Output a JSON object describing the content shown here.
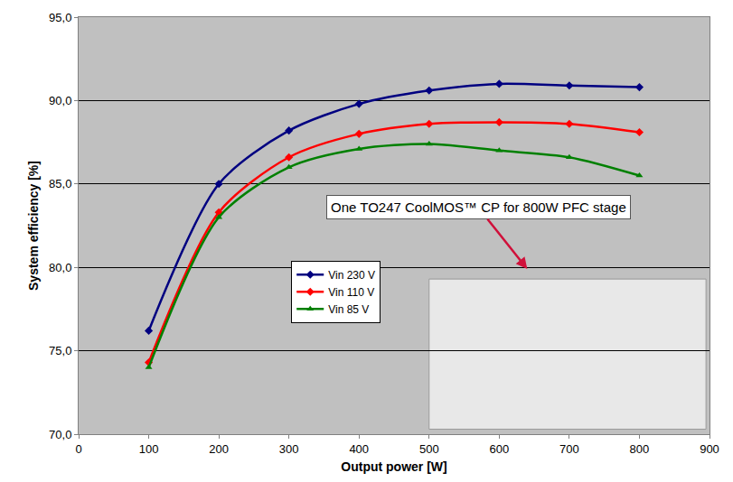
{
  "chart_data": {
    "type": "line",
    "x_label": "Output power [W]",
    "y_label": "System efficiency [%]",
    "x": [
      100,
      200,
      300,
      400,
      500,
      600,
      700,
      800
    ],
    "series": [
      {
        "name": "Vin 230 V",
        "color": "#000080",
        "marker": "diamond",
        "line_style": "solid",
        "values": [
          76.2,
          85.0,
          88.2,
          89.8,
          90.6,
          91.0,
          90.9,
          90.8
        ]
      },
      {
        "name": "Vin 110 V",
        "color": "#ff0000",
        "marker": "diamond",
        "line_style": "solid",
        "values": [
          74.3,
          83.3,
          86.6,
          88.0,
          88.6,
          88.7,
          88.6,
          88.1
        ]
      },
      {
        "name": "Vin 85 V",
        "color": "#008000",
        "marker": "triangle-up",
        "line_style": "solid",
        "values": [
          74.0,
          83.0,
          86.0,
          87.1,
          87.4,
          87.0,
          86.6,
          85.5
        ]
      }
    ],
    "xlim": [
      0,
      900
    ],
    "xticks": [
      0,
      100,
      200,
      300,
      400,
      500,
      600,
      700,
      800,
      900
    ],
    "ylim": [
      70,
      95
    ],
    "yticks": [
      {
        "value": 70,
        "label": "70,0"
      },
      {
        "value": 75,
        "label": "75,0"
      },
      {
        "value": 80,
        "label": "80,0"
      },
      {
        "value": 85,
        "label": "85,0"
      },
      {
        "value": 90,
        "label": "90,0"
      },
      {
        "value": 95,
        "label": "95,0"
      }
    ],
    "grid": true,
    "legend": "center",
    "annotations": [
      "One TO247 CoolMOS™ CP for 800W PFC stage"
    ]
  }
}
